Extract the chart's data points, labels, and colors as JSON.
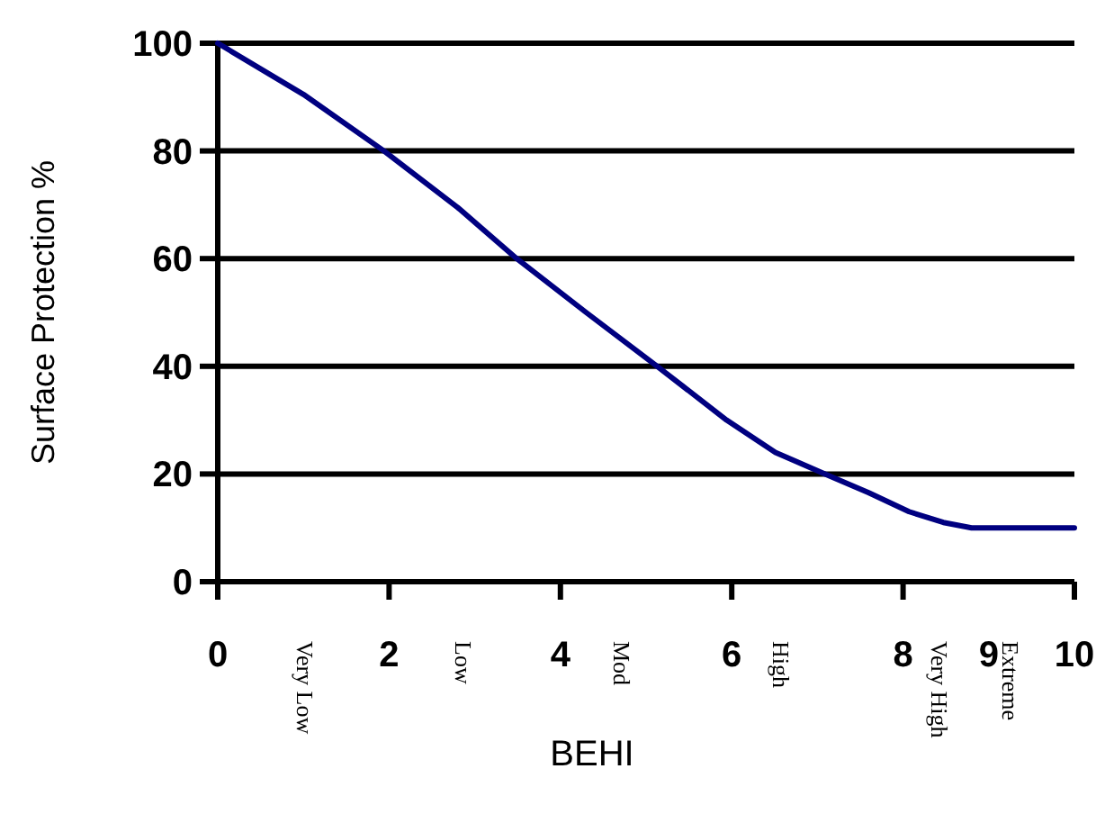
{
  "chart_data": {
    "type": "line",
    "xlabel": "BEHI",
    "ylabel": "Surface Protection %",
    "x": [
      0,
      1,
      1.94,
      2.8,
      3.49,
      4.3,
      5.13,
      5.94,
      6.51,
      7.09,
      7.6,
      8.07,
      8.47,
      8.8,
      10
    ],
    "series": [
      {
        "color": "#000080",
        "values": [
          100,
          90.5,
          80,
          69.5,
          60,
          50,
          40,
          30,
          24,
          20,
          16.5,
          13,
          11,
          10,
          10
        ]
      }
    ],
    "xlim": [
      0,
      10
    ],
    "xticks": [
      0,
      2,
      4,
      6,
      8,
      9,
      10
    ],
    "ylim": [
      0,
      100
    ],
    "yticks": [
      0,
      20,
      40,
      60,
      80,
      100
    ],
    "grid": "y",
    "marker": "none",
    "line_style": "solid",
    "annotations": [
      "Very Low",
      "Low",
      "Mod",
      "High",
      "Very High",
      "Extreme"
    ]
  }
}
